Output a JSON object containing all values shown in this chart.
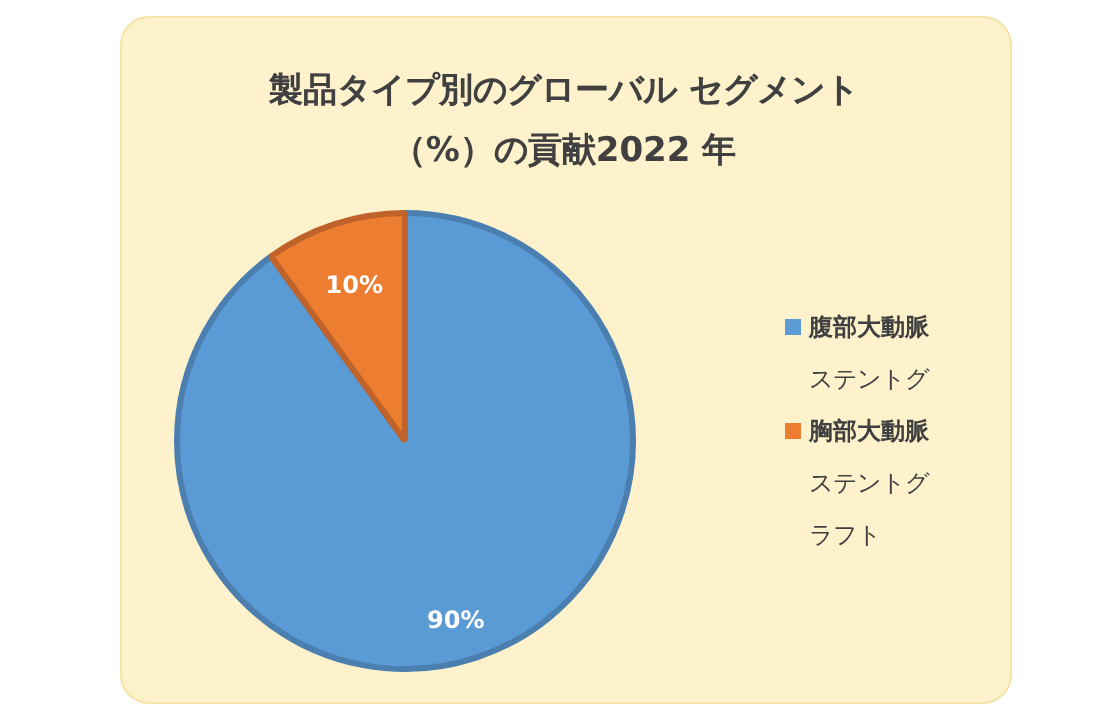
{
  "chart_data": {
    "type": "pie",
    "title": "製品タイプ別のグローバル セグメント（%）の貢献2022 年",
    "categories": [
      "腹部大動脈ステントグ",
      "胸部大動脈ステントグラフト"
    ],
    "values": [
      90,
      10
    ],
    "colors": [
      "#5b9bd5",
      "#ed7d31"
    ],
    "value_labels": [
      "90%",
      "10%"
    ],
    "legend": "right"
  }
}
